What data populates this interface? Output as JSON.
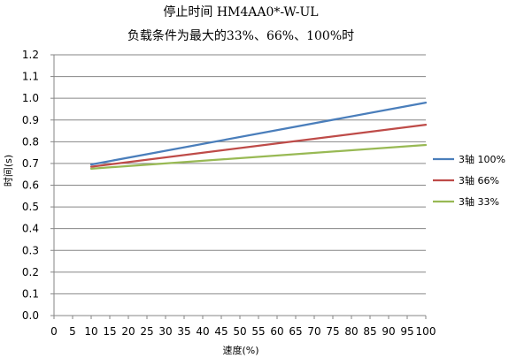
{
  "chart_data": {
    "type": "line",
    "title": "停止时间 HM4AA0*-W-UL",
    "subtitle": "负载条件为最大的33%、66%、100%时",
    "xlabel": "速度(%)",
    "ylabel": "时间(s)",
    "xlim": [
      0,
      100
    ],
    "ylim": [
      0,
      1.2
    ],
    "x_ticks": [
      "0",
      "5",
      "10",
      "15",
      "20",
      "25",
      "30",
      "35",
      "40",
      "45",
      "50",
      "55",
      "60",
      "65",
      "70",
      "75",
      "80",
      "85",
      "90",
      "95",
      "100"
    ],
    "y_ticks": [
      "0.0",
      "0.1",
      "0.2",
      "0.3",
      "0.4",
      "0.5",
      "0.6",
      "0.7",
      "0.8",
      "0.9",
      "1.0",
      "1.1",
      "1.2"
    ],
    "grid": "horizontal",
    "legend_position": "right",
    "series": [
      {
        "name": "3轴 100%",
        "color": "#4a7ebb",
        "x": [
          10,
          100
        ],
        "y": [
          0.695,
          0.98
        ]
      },
      {
        "name": "3轴 66%",
        "color": "#be4b48",
        "x": [
          10,
          100
        ],
        "y": [
          0.685,
          0.878
        ]
      },
      {
        "name": "3轴 33%",
        "color": "#98b954",
        "x": [
          10,
          100
        ],
        "y": [
          0.676,
          0.785
        ]
      }
    ]
  }
}
